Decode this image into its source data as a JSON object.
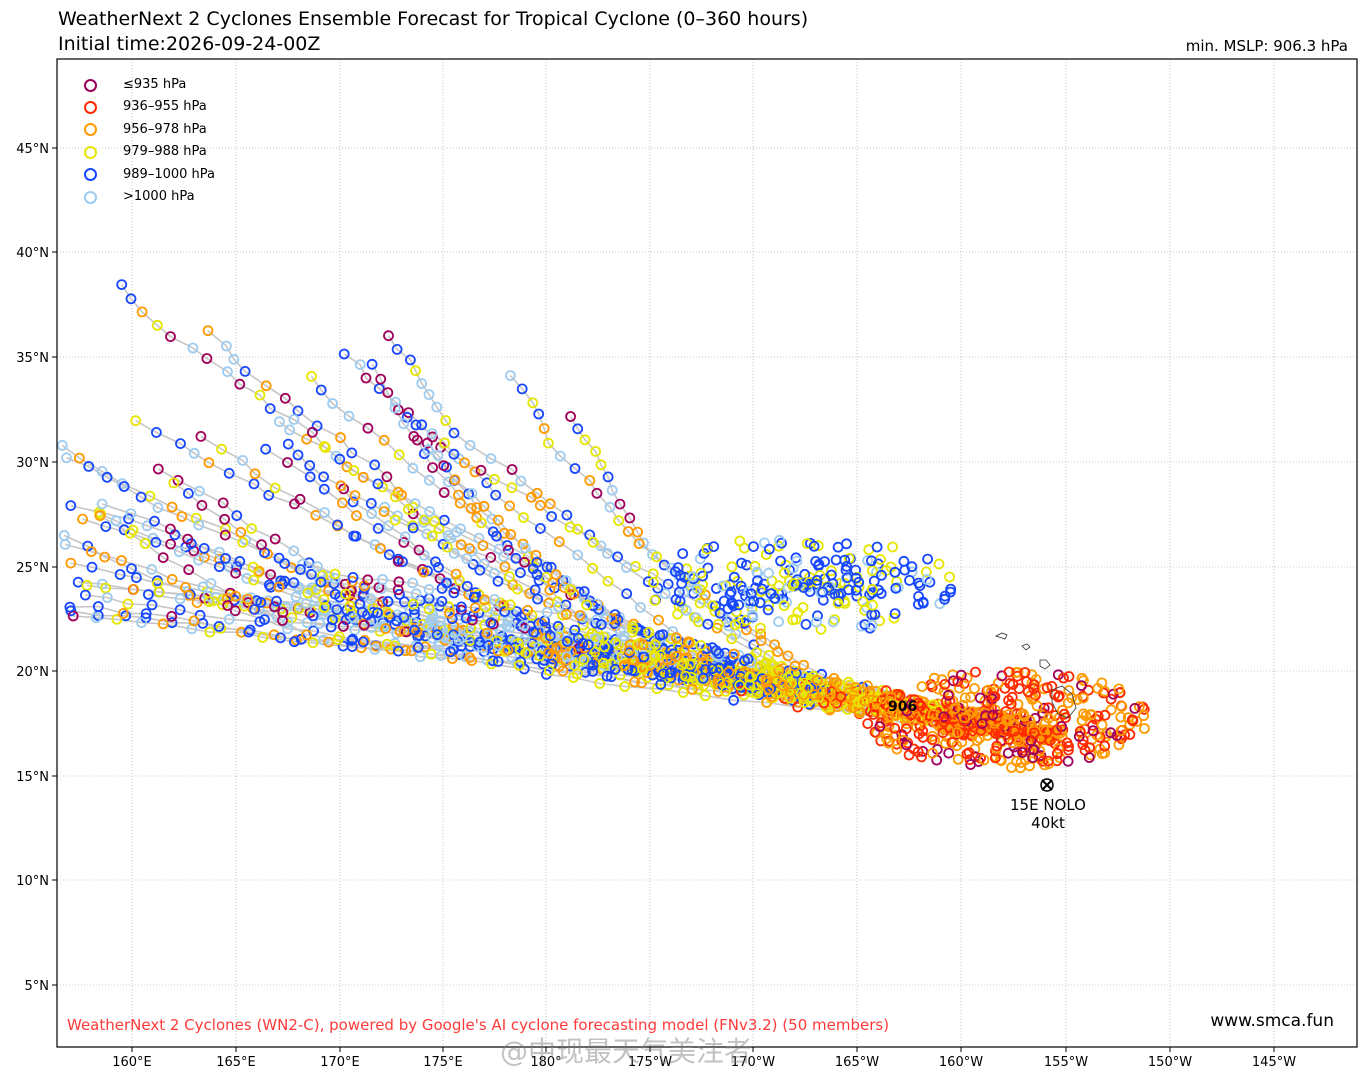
{
  "title": "WeatherNext 2 Cyclones Ensemble Forecast for Tropical Cyclone (0–360 hours)",
  "subtitle": "Initial time:2026-09-24-00Z",
  "min_mslp": "min. MSLP: 906.3 hPa",
  "credit": "WeatherNext 2 Cyclones (WN2-C), powered by Google's AI cyclone forecasting model (FNv3.2) (50 members)",
  "website": "www.smca.fun",
  "watermark": "@中现最天气美注者",
  "storm": {
    "name": "15E NOLO",
    "intensity": "40kt",
    "min_label": "906"
  },
  "legend": [
    {
      "label": "≤935 hPa",
      "color": "#a0005a"
    },
    {
      "label": "936–955 hPa",
      "color": "#ff2a00"
    },
    {
      "label": "956–978 hPa",
      "color": "#ff9a00"
    },
    {
      "label": "979–988 hPa",
      "color": "#e6e600"
    },
    {
      "label": "989–1000 hPa",
      "color": "#1747ff"
    },
    {
      "label": ">1000 hPa",
      "color": "#9ecbf0"
    }
  ],
  "track_color": "#c6c6c6",
  "lat_ticks": [
    "45°N",
    "40°N",
    "35°N",
    "30°N",
    "25°N",
    "20°N",
    "15°N",
    "10°N",
    "5°N"
  ],
  "lon_ticks": [
    "160°E",
    "165°E",
    "170°E",
    "175°E",
    "180°",
    "175°W",
    "170°W",
    "165°W",
    "160°W",
    "155°W",
    "150°W",
    "145°W"
  ]
}
